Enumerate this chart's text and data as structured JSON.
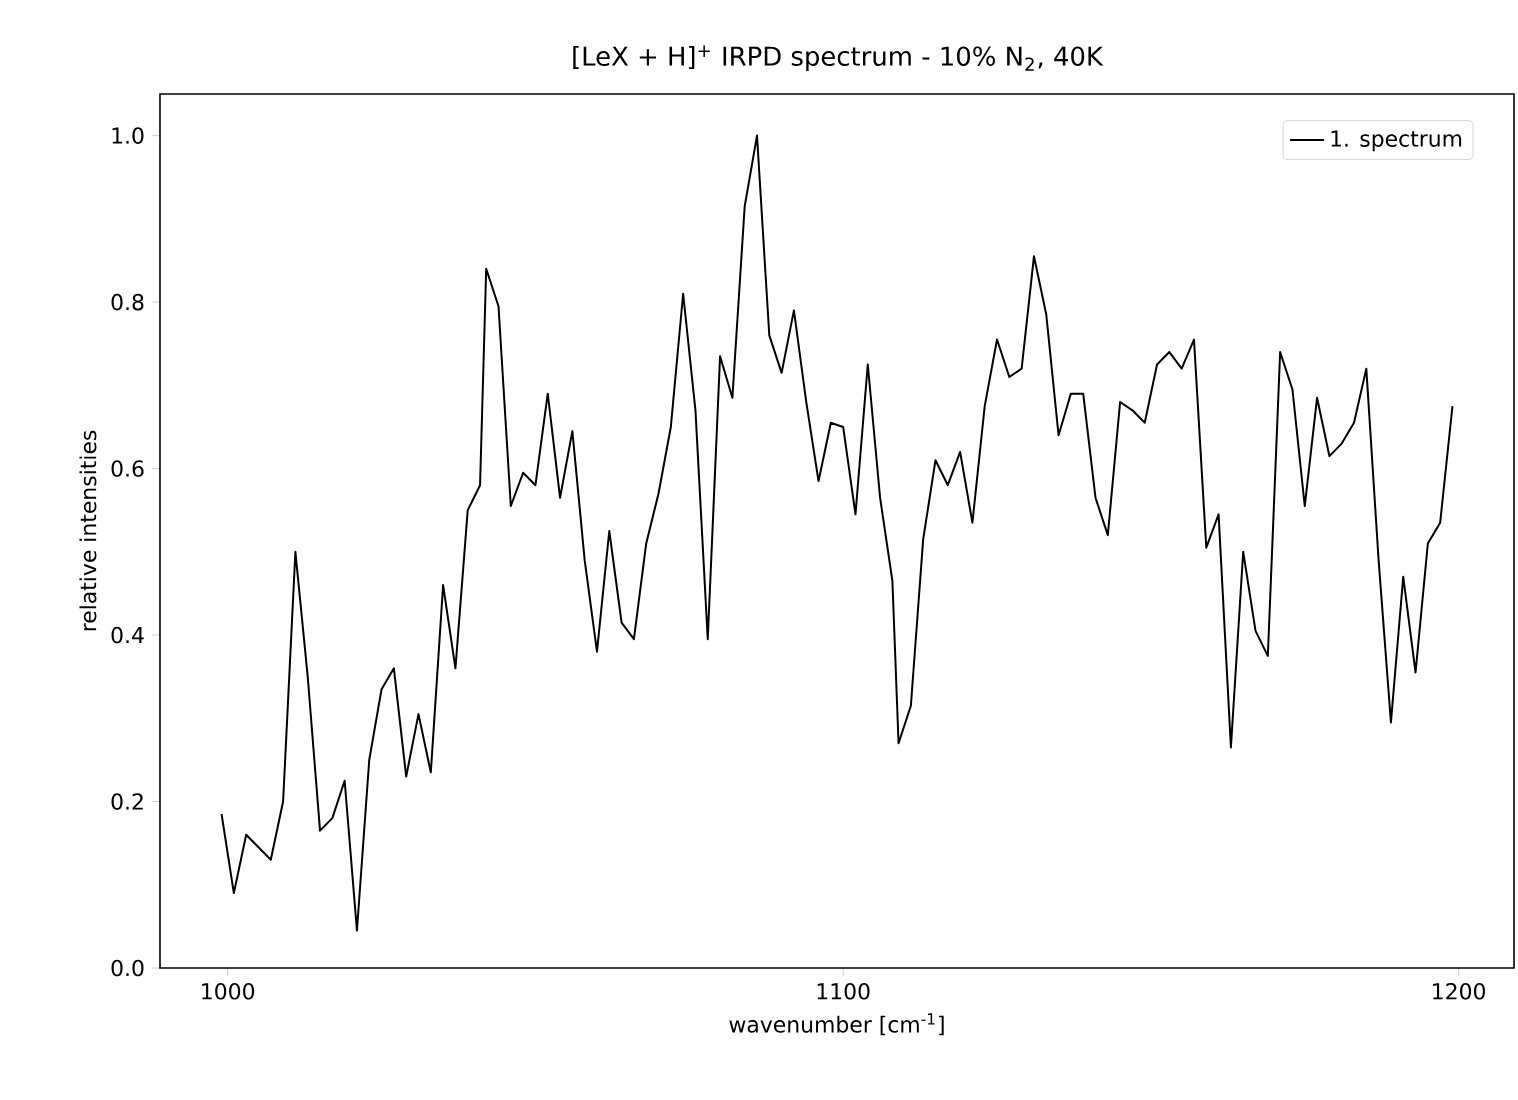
{
  "chart_data": {
    "type": "line",
    "title": "[LeX + H]$^{+}$ IRPD spectrum - 10% N$_{2}$, 40K",
    "xlabel": "wavenumber [cm$^{-1}$]",
    "ylabel": "relative intensities",
    "x": [
      999,
      1001,
      1003,
      1005,
      1007,
      1009,
      1011,
      1013,
      1015,
      1017,
      1019,
      1021,
      1023,
      1025,
      1027,
      1029,
      1031,
      1033,
      1035,
      1037,
      1039,
      1041,
      1042,
      1044,
      1046,
      1048,
      1050,
      1052,
      1054,
      1056,
      1058,
      1060,
      1062,
      1064,
      1066,
      1068,
      1070,
      1072,
      1074,
      1076,
      1078,
      1080,
      1082,
      1084,
      1086,
      1088,
      1090,
      1092,
      1094,
      1096,
      1098,
      1100,
      1102,
      1104,
      1106,
      1108,
      1109,
      1111,
      1113,
      1115,
      1117,
      1119,
      1121,
      1123,
      1125,
      1127,
      1129,
      1131,
      1133,
      1135,
      1137,
      1139,
      1141,
      1143,
      1145,
      1147,
      1149,
      1151,
      1153,
      1155,
      1157,
      1159,
      1161,
      1163,
      1165,
      1167,
      1169,
      1171,
      1173,
      1175,
      1177,
      1179,
      1181,
      1183,
      1185,
      1187,
      1189,
      1191,
      1193,
      1195,
      1197,
      1199
    ],
    "series": [
      {
        "name": "1. spectrum",
        "color": "#000000",
        "values": [
          0.185,
          0.09,
          0.16,
          0.145,
          0.13,
          0.2,
          0.5,
          0.35,
          0.165,
          0.18,
          0.225,
          0.045,
          0.25,
          0.335,
          0.36,
          0.23,
          0.305,
          0.235,
          0.46,
          0.36,
          0.55,
          0.58,
          0.84,
          0.795,
          0.555,
          0.595,
          0.58,
          0.69,
          0.565,
          0.645,
          0.49,
          0.38,
          0.525,
          0.415,
          0.395,
          0.51,
          0.57,
          0.65,
          0.81,
          0.67,
          0.395,
          0.735,
          0.685,
          0.915,
          1.0,
          0.76,
          0.715,
          0.79,
          0.68,
          0.585,
          0.655,
          0.65,
          0.545,
          0.725,
          0.565,
          0.465,
          0.27,
          0.315,
          0.515,
          0.61,
          0.58,
          0.62,
          0.535,
          0.675,
          0.755,
          0.71,
          0.72,
          0.855,
          0.785,
          0.64,
          0.69,
          0.69,
          0.565,
          0.52,
          0.68,
          0.67,
          0.655,
          0.725,
          0.74,
          0.72,
          0.755,
          0.505,
          0.545,
          0.265,
          0.5,
          0.405,
          0.375,
          0.74,
          0.695,
          0.555,
          0.685,
          0.615,
          0.63,
          0.655,
          0.72,
          0.49,
          0.295,
          0.47,
          0.355,
          0.51,
          0.535,
          0.675
        ]
      }
    ],
    "xlim": [
      989,
      1209
    ],
    "ylim": [
      0,
      1.05
    ],
    "xticks": [
      1000,
      1100,
      1200
    ],
    "yticks": [
      {
        "value": 0,
        "label": "0.0"
      },
      {
        "value": 0.2,
        "label": "0.2"
      },
      {
        "value": 0.4,
        "label": "0.4"
      },
      {
        "value": 0.6,
        "label": "0.6"
      },
      {
        "value": 0.8,
        "label": "0.8"
      },
      {
        "value": 1.0,
        "label": "1.0"
      }
    ],
    "legend": "top right"
  }
}
